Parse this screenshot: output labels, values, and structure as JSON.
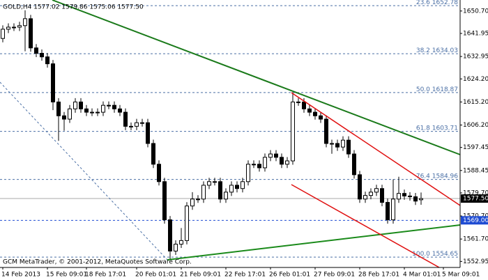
{
  "chart_data": {
    "type": "candlestick",
    "title": "GOLD,H4  1577.02 1579.86 1575.06 1577.50",
    "footer": "GCM MetaTrader, © 2001-2012, MetaQuotes Software Corp.",
    "categories": [
      "14 Feb 2013",
      null,
      null,
      null,
      null,
      null,
      null,
      null,
      "15 Feb 09:01",
      null,
      null,
      null,
      null,
      null,
      null,
      "18 Feb 17:01",
      null,
      null,
      null,
      null,
      null,
      null,
      null,
      null,
      "20 Feb 01:01",
      null,
      null,
      null,
      null,
      null,
      null,
      null,
      "21 Feb 09:01",
      null,
      null,
      null,
      null,
      null,
      null,
      null,
      "22 Feb 17:01",
      null,
      null,
      null,
      null,
      null,
      null,
      null,
      "26 Feb 01:01",
      null,
      null,
      null,
      null,
      null,
      null,
      null,
      "27 Feb 09:01",
      null,
      null,
      null,
      null,
      null,
      null,
      null,
      "28 Feb 17:01",
      null,
      null,
      null,
      null,
      null,
      null,
      null,
      "4 Mar 01:01",
      null,
      null,
      null,
      null,
      null,
      null,
      "5 Mar 09:01"
    ],
    "open": [
      1640.0,
      1643.6,
      1644.4,
      1644.4,
      1645.0,
      1647.7,
      1636.3,
      1634.2,
      1632.8,
      1630.1,
      1615.2,
      1609.8,
      1608.5,
      1612.5,
      1615.2,
      1612.5,
      1611.2,
      1611.2,
      1611.2,
      1613.9,
      1613.9,
      1612.5,
      1611.2,
      1605.7,
      1605.7,
      1607.1,
      1607.1,
      1599.0,
      1590.9,
      1584.1,
      1569.2,
      1557.0,
      1559.7,
      1561.1,
      1574.6,
      1577.3,
      1577.3,
      1582.7,
      1584.1,
      1584.1,
      1577.3,
      1580.0,
      1582.7,
      1581.4,
      1584.1,
      1590.9,
      1590.9,
      1589.5,
      1593.6,
      1594.9,
      1593.6,
      1590.9,
      1592.2,
      1615.2,
      1615.2,
      1612.5,
      1611.2,
      1609.8,
      1608.5,
      1599.0,
      1599.0,
      1597.6,
      1600.3,
      1594.9,
      1586.8,
      1577.3,
      1578.7,
      1580.0,
      1581.4,
      1576.0,
      1569.2,
      1577.3,
      1579.5,
      1578.5,
      1578.2,
      1577.02,
      null,
      null,
      null,
      null
    ],
    "high": [
      1645.1,
      1645.9,
      1645.9,
      1646.5,
      1651.0,
      1649.2,
      1637.8,
      1635.7,
      1634.3,
      1631.6,
      1616.7,
      1611.3,
      1614.0,
      1616.7,
      1616.7,
      1614.0,
      1612.7,
      1612.7,
      1615.4,
      1615.4,
      1615.4,
      1614.0,
      1612.7,
      1607.2,
      1608.6,
      1608.6,
      1608.6,
      1600.5,
      1592.4,
      1585.6,
      1570.7,
      1561.2,
      1566.0,
      1576.1,
      1580.0,
      1578.8,
      1584.2,
      1585.6,
      1585.6,
      1585.6,
      1581.5,
      1584.2,
      1584.2,
      1585.6,
      1592.4,
      1592.4,
      1592.4,
      1595.1,
      1596.4,
      1596.4,
      1595.1,
      1593.7,
      1619.0,
      1616.7,
      1616.7,
      1614.0,
      1612.7,
      1611.3,
      1610.0,
      1600.5,
      1600.5,
      1601.8,
      1601.8,
      1596.4,
      1588.3,
      1580.2,
      1581.5,
      1582.9,
      1582.9,
      1577.5,
      1585.0,
      1586.0,
      1581.0,
      1580.0,
      1579.7,
      1579.86,
      null,
      null,
      null,
      null
    ],
    "low": [
      1638.5,
      1642.1,
      1642.9,
      1642.9,
      1635.0,
      1634.8,
      1632.7,
      1631.3,
      1628.6,
      1612.0,
      1600.0,
      1604.0,
      1607.0,
      1611.0,
      1611.0,
      1609.7,
      1609.7,
      1609.7,
      1609.7,
      1612.4,
      1611.0,
      1609.7,
      1604.2,
      1604.2,
      1604.2,
      1605.6,
      1597.5,
      1589.4,
      1582.6,
      1567.7,
      1554.0,
      1555.5,
      1558.2,
      1559.6,
      1573.1,
      1575.8,
      1575.8,
      1581.2,
      1582.6,
      1575.8,
      1575.8,
      1578.5,
      1579.9,
      1579.9,
      1582.6,
      1589.4,
      1588.0,
      1588.0,
      1592.1,
      1592.1,
      1589.4,
      1589.4,
      1590.7,
      1613.7,
      1611.0,
      1609.7,
      1608.3,
      1607.0,
      1597.5,
      1595.0,
      1596.1,
      1596.1,
      1593.4,
      1585.3,
      1575.8,
      1575.8,
      1577.2,
      1578.5,
      1574.5,
      1567.7,
      1567.7,
      1575.8,
      1577.0,
      1576.7,
      1575.0,
      1575.06,
      null,
      null,
      null,
      null
    ],
    "close": [
      1643.6,
      1644.4,
      1644.4,
      1645.0,
      1647.7,
      1636.3,
      1634.2,
      1632.8,
      1630.1,
      1615.2,
      1609.8,
      1608.5,
      1612.5,
      1615.2,
      1612.5,
      1611.2,
      1611.2,
      1611.2,
      1613.9,
      1613.9,
      1612.5,
      1611.2,
      1605.7,
      1605.7,
      1607.1,
      1607.1,
      1599.0,
      1590.9,
      1584.1,
      1569.2,
      1557.0,
      1559.7,
      1561.1,
      1574.6,
      1577.3,
      1577.3,
      1582.7,
      1584.1,
      1584.1,
      1577.3,
      1580.0,
      1582.7,
      1581.4,
      1584.1,
      1590.9,
      1590.9,
      1589.5,
      1593.6,
      1594.9,
      1593.6,
      1590.9,
      1592.2,
      1615.2,
      1615.2,
      1612.5,
      1611.2,
      1609.8,
      1608.5,
      1599.0,
      1599.0,
      1597.6,
      1600.3,
      1594.9,
      1586.8,
      1577.3,
      1578.7,
      1580.0,
      1581.4,
      1576.0,
      1569.2,
      1577.3,
      1579.5,
      1578.5,
      1578.2,
      1576.5,
      1577.5,
      null,
      null,
      null,
      null
    ],
    "up_color": "#ffffff",
    "down_color": "#000000",
    "ylim": [
      1550.6,
      1655.0
    ],
    "yticks": [
      {
        "value": 1650.7,
        "label": "1650.70"
      },
      1641.95,
      1632.95,
      {
        "value": 1624.2,
        "label": "1624.20"
      },
      {
        "value": 1615.2,
        "label": "1615.20"
      },
      {
        "value": 1606.2,
        "label": "1606.20"
      },
      1597.45,
      1588.45,
      {
        "value": 1579.7,
        "label": "1579.70"
      },
      {
        "value": 1570.7,
        "label": "1570.70"
      },
      {
        "value": 1561.7,
        "label": "1561.70"
      },
      1552.95
    ],
    "fib_levels": [
      {
        "level": "23.6",
        "value": 1652.78
      },
      {
        "level": "38.2",
        "value": 1634.03
      },
      {
        "level": "50.0",
        "value": 1618.87
      },
      {
        "level": "61.8",
        "value": 1603.71
      },
      {
        "level": "76.4",
        "value": 1584.96
      },
      {
        "level": "100.0",
        "value": 1554.65
      }
    ],
    "fib_color": "#4a6fa5",
    "bid": {
      "value": 1577.5,
      "label": "1577.50"
    },
    "level_line": {
      "value": 1569,
      "label": "1569.00"
    },
    "level_color": "#1e4bd2"
  }
}
